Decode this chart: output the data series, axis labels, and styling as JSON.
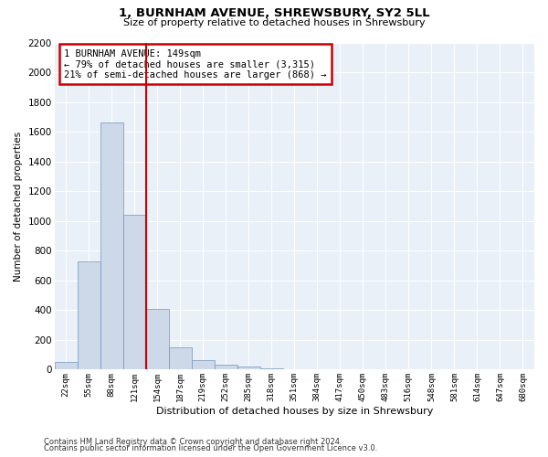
{
  "title1": "1, BURNHAM AVENUE, SHREWSBURY, SY2 5LL",
  "title2": "Size of property relative to detached houses in Shrewsbury",
  "xlabel": "Distribution of detached houses by size in Shrewsbury",
  "ylabel": "Number of detached properties",
  "categories": [
    "22sqm",
    "55sqm",
    "88sqm",
    "121sqm",
    "154sqm",
    "187sqm",
    "219sqm",
    "252sqm",
    "285sqm",
    "318sqm",
    "351sqm",
    "384sqm",
    "417sqm",
    "450sqm",
    "483sqm",
    "516sqm",
    "548sqm",
    "581sqm",
    "614sqm",
    "647sqm",
    "680sqm"
  ],
  "values": [
    50,
    730,
    1660,
    1040,
    410,
    150,
    65,
    35,
    20,
    10,
    5,
    2,
    2,
    0,
    0,
    0,
    0,
    0,
    0,
    0,
    0
  ],
  "bar_color": "#cdd8e8",
  "bar_edgecolor": "#7494c0",
  "vline_color": "#cc0000",
  "vline_index": 3.5,
  "annotation_text": "1 BURNHAM AVENUE: 149sqm\n← 79% of detached houses are smaller (3,315)\n21% of semi-detached houses are larger (868) →",
  "annotation_box_edgecolor": "#cc0000",
  "ylim": [
    0,
    2200
  ],
  "yticks": [
    0,
    200,
    400,
    600,
    800,
    1000,
    1200,
    1400,
    1600,
    1800,
    2000,
    2200
  ],
  "background_color": "#eaf0f8",
  "grid_color": "#ffffff",
  "footnote_line1": "Contains HM Land Registry data © Crown copyright and database right 2024.",
  "footnote_line2": "Contains public sector information licensed under the Open Government Licence v3.0."
}
